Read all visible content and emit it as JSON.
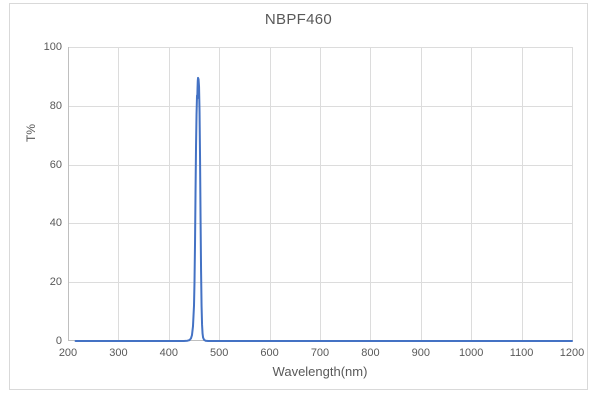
{
  "chart_data": {
    "type": "line",
    "title": "NBPF460",
    "xlabel": "Wavelength(nm)",
    "ylabel": "T%",
    "xlim": [
      200,
      1200
    ],
    "ylim": [
      0,
      100
    ],
    "x_ticks": [
      200,
      300,
      400,
      500,
      600,
      700,
      800,
      900,
      1000,
      1100,
      1200
    ],
    "y_ticks": [
      0,
      20,
      40,
      60,
      80,
      100
    ],
    "grid": true,
    "legend": "none",
    "series": [
      {
        "name": "NBPF460",
        "color": "#4472C4",
        "points": [
          [
            215,
            0
          ],
          [
            240,
            0
          ],
          [
            270,
            0
          ],
          [
            300,
            0
          ],
          [
            330,
            0
          ],
          [
            360,
            0
          ],
          [
            390,
            0
          ],
          [
            415,
            0
          ],
          [
            430,
            0
          ],
          [
            437,
            0.1
          ],
          [
            441,
            0.3
          ],
          [
            444,
            0.9
          ],
          [
            446,
            2
          ],
          [
            448,
            5
          ],
          [
            450,
            12
          ],
          [
            451,
            20
          ],
          [
            452,
            33
          ],
          [
            453,
            50
          ],
          [
            454,
            66
          ],
          [
            455,
            77
          ],
          [
            456,
            83.5
          ],
          [
            456.5,
            82.5
          ],
          [
            457,
            86
          ],
          [
            457.5,
            88.5
          ],
          [
            458,
            89.5
          ],
          [
            459,
            89
          ],
          [
            460,
            86.5
          ],
          [
            461,
            78
          ],
          [
            462,
            62
          ],
          [
            463,
            42
          ],
          [
            464,
            24
          ],
          [
            465,
            12
          ],
          [
            466,
            5.5
          ],
          [
            467,
            2.5
          ],
          [
            468,
            1.2
          ],
          [
            470,
            0.4
          ],
          [
            473,
            0.1
          ],
          [
            478,
            0
          ],
          [
            490,
            0
          ],
          [
            520,
            0
          ],
          [
            560,
            0
          ],
          [
            600,
            0
          ],
          [
            640,
            0
          ],
          [
            680,
            0
          ],
          [
            720,
            0
          ],
          [
            760,
            0
          ],
          [
            800,
            0
          ],
          [
            840,
            0
          ],
          [
            880,
            0
          ],
          [
            920,
            0
          ],
          [
            960,
            0
          ],
          [
            1000,
            0
          ],
          [
            1040,
            0
          ],
          [
            1080,
            0
          ],
          [
            1120,
            0
          ],
          [
            1160,
            0
          ],
          [
            1200,
            0
          ]
        ]
      }
    ]
  },
  "colors": {
    "line": "#4472C4",
    "grid": "#dcdcdc",
    "axis": "#bfbfbf",
    "text": "#595959",
    "frame_border": "#d9d9d9",
    "background": "#ffffff"
  }
}
